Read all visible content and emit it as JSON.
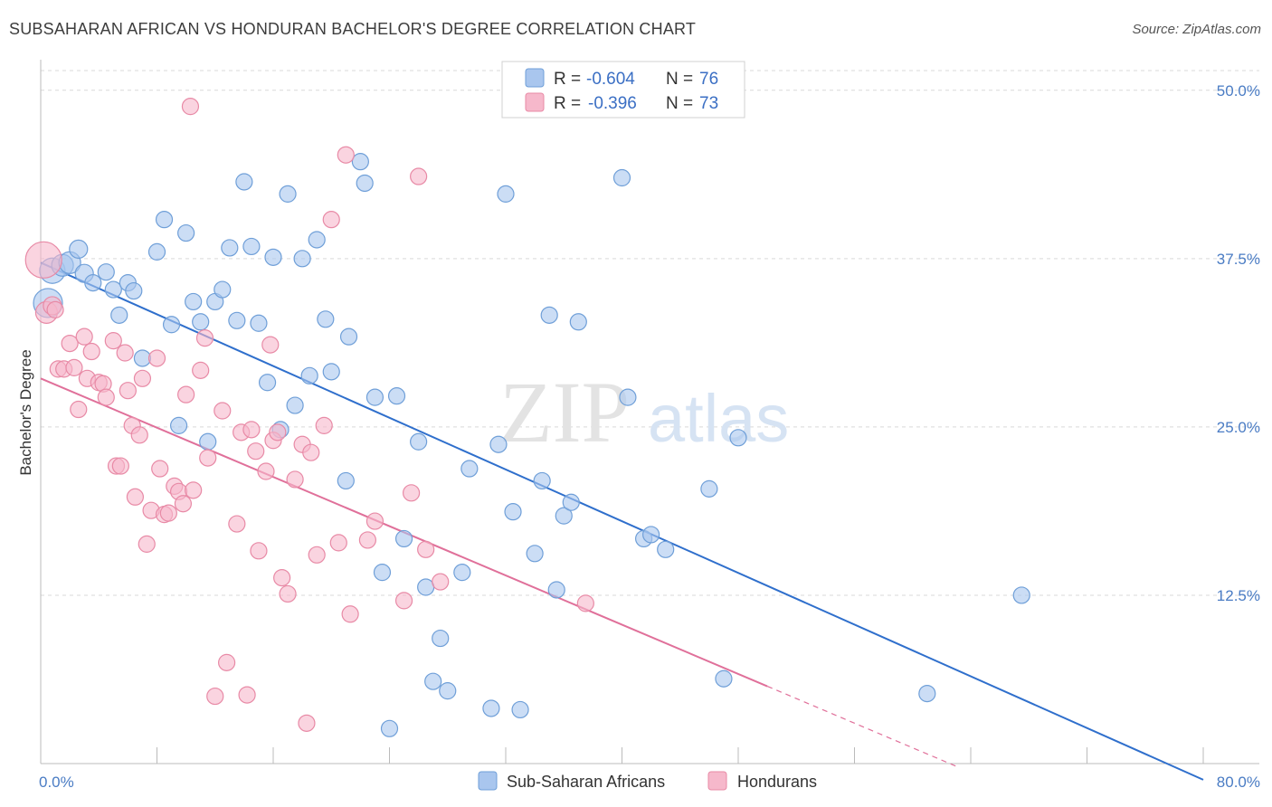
{
  "title": "SUBSAHARAN AFRICAN VS HONDURAN BACHELOR'S DEGREE CORRELATION CHART",
  "source": "Source: ZipAtlas.com",
  "watermark": {
    "zip": "ZIP",
    "atlas": "atlas"
  },
  "colors": {
    "blue_fill": "#a9c6ee",
    "blue_stroke": "#6f9fd8",
    "blue_line": "#2f6fcc",
    "pink_fill": "#f6b8cb",
    "pink_stroke": "#e88aa6",
    "pink_line": "#e0709a",
    "grid": "#d9d9d9",
    "tick_text": "#4a7cc4"
  },
  "legend": {
    "rows": [
      {
        "r_label": "R = ",
        "r_value": "-0.604",
        "n_label": "N = ",
        "n_value": "76"
      },
      {
        "r_label": "R = ",
        "r_value": "-0.396",
        "n_label": "N = ",
        "n_value": "73"
      }
    ]
  },
  "chart_data": {
    "type": "scatter",
    "xlabel": "",
    "ylabel": "Bachelor's Degree",
    "xlim": [
      0,
      80
    ],
    "ylim": [
      0,
      52
    ],
    "x_tick_labels": [
      "0.0%",
      "80.0%"
    ],
    "y_ticks": [
      12.5,
      25.0,
      37.5,
      50.0
    ],
    "y_tick_labels": [
      "12.5%",
      "25.0%",
      "37.5%",
      "50.0%"
    ],
    "grid": "horizontal dashed",
    "legend_placement": "top-center",
    "series": [
      {
        "name": "Sub-Saharan Africans",
        "color": "#a9c6ee",
        "trend": {
          "x0": 0,
          "y0": 37.2,
          "x1": 80,
          "y1": -1.2,
          "dashed_from": null
        },
        "points": [
          [
            0.5,
            34.2,
            16
          ],
          [
            0.8,
            36.6,
            14
          ],
          [
            1.5,
            37.0,
            12
          ],
          [
            2.0,
            37.2,
            12
          ],
          [
            2.6,
            38.2,
            10
          ],
          [
            3.0,
            36.4,
            10
          ],
          [
            3.6,
            35.7,
            9
          ],
          [
            4.5,
            36.5,
            9
          ],
          [
            5.0,
            35.2,
            9
          ],
          [
            5.4,
            33.3,
            9
          ],
          [
            6.0,
            35.7,
            9
          ],
          [
            6.4,
            35.1,
            9
          ],
          [
            7.0,
            30.1,
            9
          ],
          [
            8.0,
            38.0,
            9
          ],
          [
            8.5,
            40.4,
            9
          ],
          [
            9.0,
            32.6,
            9
          ],
          [
            9.5,
            25.1,
            9
          ],
          [
            10.0,
            39.4,
            9
          ],
          [
            10.5,
            34.3,
            9
          ],
          [
            11.0,
            32.8,
            9
          ],
          [
            11.5,
            23.9,
            9
          ],
          [
            12.0,
            34.3,
            9
          ],
          [
            12.5,
            35.2,
            9
          ],
          [
            13.0,
            38.3,
            9
          ],
          [
            13.5,
            32.9,
            9
          ],
          [
            14.0,
            43.2,
            9
          ],
          [
            14.5,
            38.4,
            9
          ],
          [
            15.0,
            32.7,
            9
          ],
          [
            15.6,
            28.3,
            9
          ],
          [
            16.0,
            37.6,
            9
          ],
          [
            16.5,
            24.8,
            9
          ],
          [
            17.0,
            42.3,
            9
          ],
          [
            17.5,
            26.6,
            9
          ],
          [
            18.0,
            37.5,
            9
          ],
          [
            18.5,
            28.8,
            9
          ],
          [
            19.0,
            38.9,
            9
          ],
          [
            19.6,
            33.0,
            9
          ],
          [
            20.0,
            29.1,
            9
          ],
          [
            21.0,
            21.0,
            9
          ],
          [
            21.2,
            31.7,
            9
          ],
          [
            22.0,
            44.7,
            9
          ],
          [
            22.3,
            43.1,
            9
          ],
          [
            23.0,
            27.2,
            9
          ],
          [
            23.5,
            14.2,
            9
          ],
          [
            24.0,
            2.6,
            9
          ],
          [
            24.5,
            27.3,
            9
          ],
          [
            25.0,
            16.7,
            9
          ],
          [
            26.0,
            23.9,
            9
          ],
          [
            26.5,
            13.1,
            9
          ],
          [
            27.0,
            6.1,
            9
          ],
          [
            27.5,
            9.3,
            9
          ],
          [
            28.0,
            5.4,
            9
          ],
          [
            29.0,
            14.2,
            9
          ],
          [
            29.5,
            21.9,
            9
          ],
          [
            31.0,
            4.1,
            9
          ],
          [
            31.5,
            23.7,
            9
          ],
          [
            32.0,
            42.3,
            9
          ],
          [
            32.5,
            18.7,
            9
          ],
          [
            33.0,
            4.0,
            9
          ],
          [
            34.0,
            15.6,
            9
          ],
          [
            34.5,
            21.0,
            9
          ],
          [
            35.0,
            33.3,
            9
          ],
          [
            35.5,
            12.9,
            9
          ],
          [
            36.0,
            18.4,
            9
          ],
          [
            36.5,
            19.4,
            9
          ],
          [
            37.0,
            32.8,
            9
          ],
          [
            40.0,
            43.5,
            9
          ],
          [
            40.4,
            27.2,
            9
          ],
          [
            41.5,
            16.7,
            9
          ],
          [
            42.0,
            17.0,
            9
          ],
          [
            43.0,
            15.9,
            9
          ],
          [
            46.0,
            20.4,
            9
          ],
          [
            47.0,
            6.3,
            9
          ],
          [
            48.0,
            24.2,
            9
          ],
          [
            61.0,
            5.2,
            9
          ],
          [
            67.5,
            12.5,
            9
          ]
        ]
      },
      {
        "name": "Hondurans",
        "color": "#f6b8cb",
        "trend": {
          "x0": 0,
          "y0": 28.6,
          "x1": 63,
          "y1": -0.2,
          "dashed_from": 50
        },
        "points": [
          [
            0.2,
            37.4,
            20
          ],
          [
            0.4,
            33.5,
            12
          ],
          [
            0.8,
            34.0,
            10
          ],
          [
            1.0,
            33.7,
            9
          ],
          [
            1.2,
            29.3,
            9
          ],
          [
            1.6,
            29.3,
            9
          ],
          [
            2.0,
            31.2,
            9
          ],
          [
            2.3,
            29.4,
            9
          ],
          [
            2.6,
            26.3,
            9
          ],
          [
            3.0,
            31.7,
            9
          ],
          [
            3.2,
            28.6,
            9
          ],
          [
            3.5,
            30.6,
            9
          ],
          [
            4.0,
            28.3,
            9
          ],
          [
            4.3,
            28.2,
            9
          ],
          [
            4.5,
            27.2,
            9
          ],
          [
            5.0,
            31.4,
            9
          ],
          [
            5.2,
            22.1,
            9
          ],
          [
            5.5,
            22.1,
            9
          ],
          [
            5.8,
            30.5,
            9
          ],
          [
            6.0,
            27.7,
            9
          ],
          [
            6.3,
            25.1,
            9
          ],
          [
            6.5,
            19.8,
            9
          ],
          [
            6.8,
            24.4,
            9
          ],
          [
            7.0,
            28.6,
            9
          ],
          [
            7.3,
            16.3,
            9
          ],
          [
            7.6,
            18.8,
            9
          ],
          [
            8.0,
            30.1,
            9
          ],
          [
            8.2,
            21.9,
            9
          ],
          [
            8.5,
            18.5,
            9
          ],
          [
            8.8,
            18.6,
            9
          ],
          [
            9.2,
            20.6,
            9
          ],
          [
            9.5,
            20.2,
            9
          ],
          [
            9.8,
            19.3,
            9
          ],
          [
            10.0,
            27.4,
            9
          ],
          [
            10.3,
            48.8,
            9
          ],
          [
            10.5,
            20.3,
            9
          ],
          [
            11.0,
            29.2,
            9
          ],
          [
            11.3,
            31.6,
            9
          ],
          [
            11.5,
            22.7,
            9
          ],
          [
            12.0,
            5.0,
            9
          ],
          [
            12.5,
            26.2,
            9
          ],
          [
            12.8,
            7.5,
            9
          ],
          [
            13.5,
            17.8,
            9
          ],
          [
            13.8,
            24.6,
            9
          ],
          [
            14.2,
            5.1,
            9
          ],
          [
            14.5,
            24.8,
            9
          ],
          [
            14.8,
            23.2,
            9
          ],
          [
            15.0,
            15.8,
            9
          ],
          [
            15.5,
            21.7,
            9
          ],
          [
            15.8,
            31.1,
            9
          ],
          [
            16.0,
            24.0,
            9
          ],
          [
            16.3,
            24.6,
            9
          ],
          [
            16.6,
            13.8,
            9
          ],
          [
            17.0,
            12.6,
            9
          ],
          [
            17.5,
            21.1,
            9
          ],
          [
            18.0,
            23.7,
            9
          ],
          [
            18.3,
            3.0,
            9
          ],
          [
            18.6,
            23.1,
            9
          ],
          [
            19.0,
            15.5,
            9
          ],
          [
            19.5,
            25.1,
            9
          ],
          [
            20.0,
            40.4,
            9
          ],
          [
            20.5,
            16.4,
            9
          ],
          [
            21.0,
            45.2,
            9
          ],
          [
            21.3,
            11.1,
            9
          ],
          [
            22.5,
            16.6,
            9
          ],
          [
            23.0,
            18.0,
            9
          ],
          [
            25.0,
            12.1,
            9
          ],
          [
            25.5,
            20.1,
            9
          ],
          [
            26.0,
            43.6,
            9
          ],
          [
            26.5,
            15.9,
            9
          ],
          [
            27.5,
            13.5,
            9
          ],
          [
            37.5,
            11.9,
            9
          ],
          [
            36.0,
            0.0,
            0
          ]
        ]
      }
    ]
  },
  "bottom_legend": {
    "items": [
      "Sub-Saharan Africans",
      "Hondurans"
    ]
  }
}
